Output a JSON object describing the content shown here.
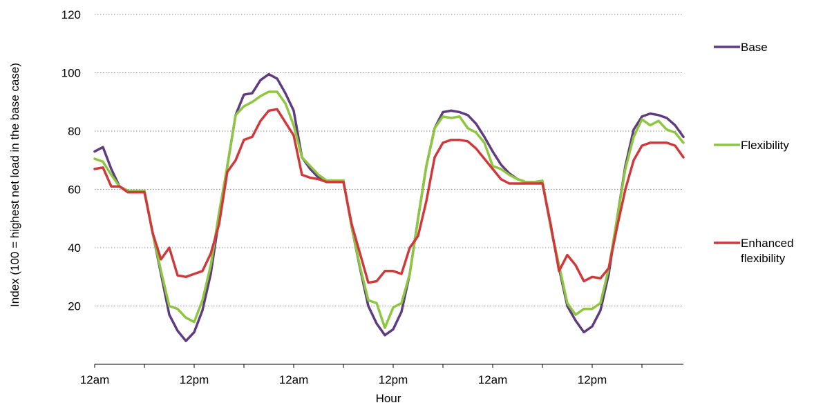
{
  "chart_data": {
    "type": "line",
    "xlabel": "Hour",
    "ylabel": "Index (100 = highest net load in the base case)",
    "ylim": [
      0,
      120
    ],
    "yticks": [
      20,
      40,
      60,
      80,
      100,
      120
    ],
    "xtick_labels": [
      "12am",
      "12pm",
      "12am",
      "12pm",
      "12am",
      "12pm"
    ],
    "grid": "horizontal dotted",
    "legend_position": "right",
    "x": [
      0,
      1,
      2,
      3,
      4,
      5,
      6,
      7,
      8,
      9,
      10,
      11,
      12,
      13,
      14,
      15,
      16,
      17,
      18,
      19,
      20,
      21,
      22,
      23,
      24,
      25,
      26,
      27,
      28,
      29,
      30,
      31,
      32,
      33,
      34,
      35,
      36,
      37,
      38,
      39,
      40,
      41,
      42,
      43,
      44,
      45,
      46,
      47,
      48,
      49,
      50,
      51,
      52,
      53,
      54,
      55,
      56,
      57,
      58,
      59,
      60,
      61,
      62,
      63,
      64,
      65,
      66,
      67,
      68,
      69,
      70,
      71
    ],
    "series": [
      {
        "name": "Base",
        "color": "#5f3b7f",
        "values": [
          73,
          74.5,
          67,
          61,
          59.5,
          59.5,
          59.5,
          45,
          31,
          17,
          11.5,
          8,
          11,
          18.5,
          31,
          50,
          68,
          85.5,
          92.5,
          93,
          97.5,
          99.5,
          98,
          93,
          87,
          71,
          67,
          64,
          63,
          63,
          63,
          47,
          33,
          20,
          14,
          10,
          12,
          18,
          31,
          50,
          68,
          81,
          86.5,
          87,
          86.5,
          85.5,
          82.5,
          78,
          73,
          68.5,
          65.5,
          63.5,
          62.5,
          62.5,
          62.5,
          47,
          33,
          20,
          15,
          11,
          13,
          18.5,
          31,
          50,
          68,
          80.5,
          85,
          86,
          85.5,
          84.5,
          82,
          78
        ]
      },
      {
        "name": "Flexibility",
        "color": "#8dc63f",
        "values": [
          70.5,
          69.5,
          65,
          61,
          59.5,
          59.5,
          59.5,
          45,
          32,
          20,
          19,
          16,
          14.5,
          22,
          34,
          52,
          68,
          85.5,
          88.5,
          90,
          92,
          93.5,
          93.5,
          89.5,
          82,
          71,
          68,
          65,
          63,
          63,
          63,
          47,
          33.5,
          22,
          21,
          12.5,
          19.5,
          21,
          31,
          50,
          68,
          81,
          85,
          84.5,
          85,
          81,
          79.5,
          76,
          68,
          67,
          65,
          63.5,
          62.5,
          62.5,
          63,
          47,
          34,
          21,
          17,
          19,
          19,
          21,
          33,
          50,
          67,
          78,
          84,
          82,
          83.5,
          80.5,
          79.5,
          76
        ]
      },
      {
        "name": "Enhanced flexibility",
        "color": "#d0393b",
        "values": [
          67,
          67.5,
          61,
          61,
          59,
          59,
          59,
          45,
          36,
          40,
          30.5,
          30,
          31,
          32,
          38,
          48,
          66,
          70,
          77,
          78,
          83.5,
          87,
          87.5,
          83,
          78.5,
          65,
          64,
          63.5,
          62.5,
          62.5,
          62.5,
          48,
          38,
          28,
          28.5,
          32,
          32,
          31,
          40,
          44,
          56,
          71,
          76,
          77,
          77,
          76.5,
          74,
          70.5,
          67,
          63.5,
          62,
          62,
          62,
          62,
          62,
          48,
          32,
          37.5,
          34,
          28.5,
          30,
          29.5,
          33,
          47,
          60,
          70,
          75,
          76,
          76,
          76,
          75,
          71
        ]
      }
    ]
  }
}
